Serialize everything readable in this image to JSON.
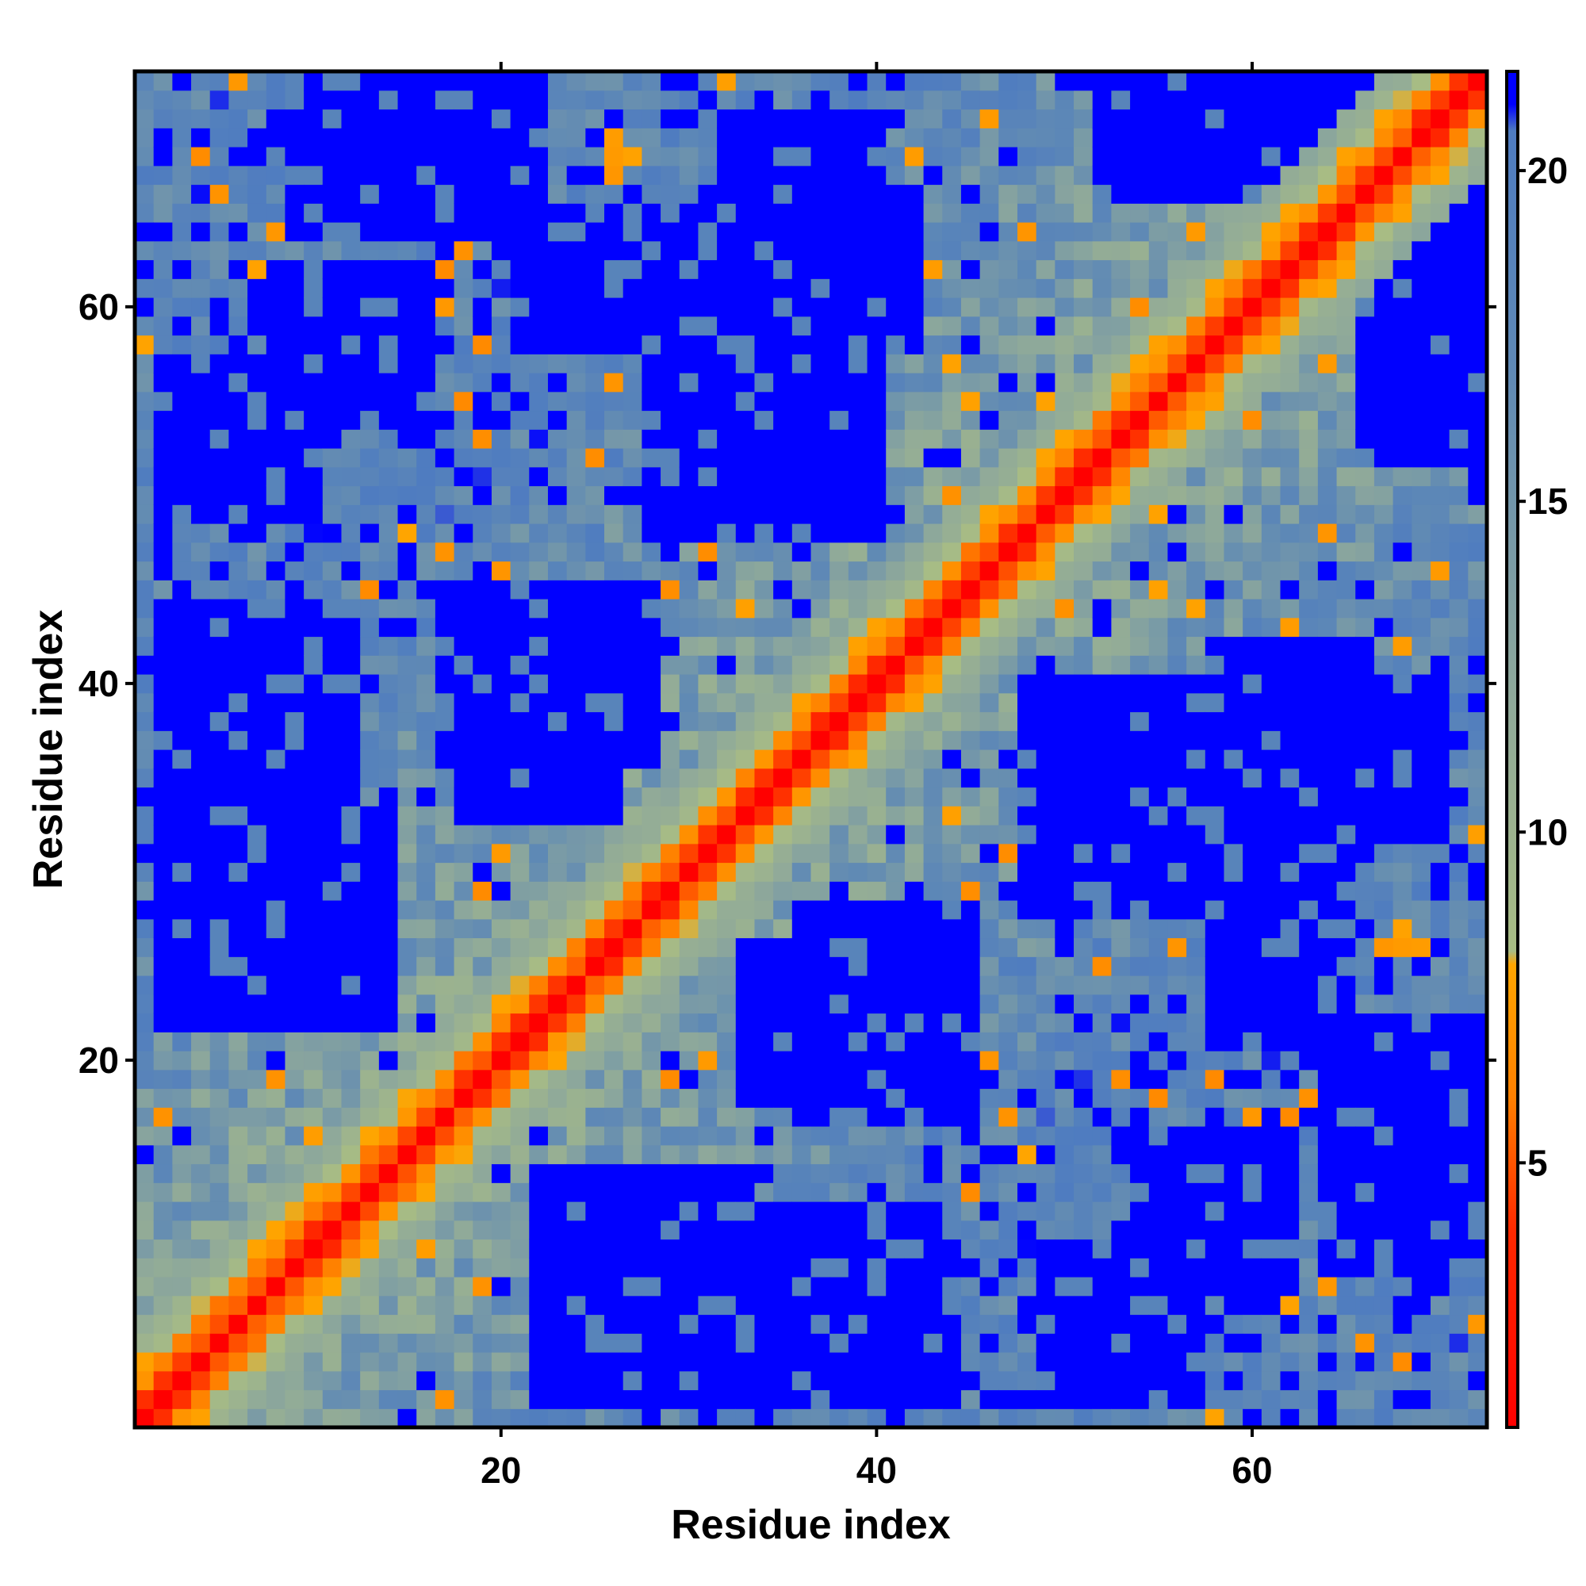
{
  "chart_data": {
    "type": "heatmap",
    "title": "",
    "xlabel": "Residue index",
    "ylabel": "Residue index",
    "n_residues": 72,
    "xlim": [
      0.5,
      72.5
    ],
    "ylim": [
      0.5,
      72.5
    ],
    "x_ticks": [
      20,
      40,
      60
    ],
    "y_ticks": [
      20,
      40,
      60
    ],
    "colorbar": {
      "range": [
        1,
        21.5
      ],
      "ticks": [
        5,
        10,
        15,
        20
      ],
      "stops": [
        {
          "value": 1,
          "color": "#ff0000"
        },
        {
          "value": 4,
          "color": "#ff2a00"
        },
        {
          "value": 6,
          "color": "#ff8000"
        },
        {
          "value": 8,
          "color": "#ffa500"
        },
        {
          "value": 8.2,
          "color": "#a8bc84"
        },
        {
          "value": 12,
          "color": "#8fa99a"
        },
        {
          "value": 17,
          "color": "#5f89b5"
        },
        {
          "value": 20.6,
          "color": "#4f7cc0"
        },
        {
          "value": 21,
          "color": "#0000ff"
        },
        {
          "value": 21.5,
          "color": "#0000ff"
        }
      ]
    },
    "structure": {
      "diagonal_value": 1,
      "near_diagonal_profile": [
        1,
        4.5,
        6.5,
        8.5,
        10.5,
        12
      ],
      "far_cutoff": 21,
      "far_blocks": [
        {
          "i": [
            2,
            14
          ],
          "j": [
            22,
            33
          ]
        },
        {
          "i": [
            8,
            16
          ],
          "j": [
            54,
            62
          ]
        },
        {
          "i": [
            18,
            26
          ],
          "j": [
            33,
            45
          ]
        },
        {
          "i": [
            21,
            30
          ],
          "j": [
            58,
            65
          ]
        },
        {
          "i": [
            30,
            38
          ],
          "j": [
            48,
            58
          ]
        },
        {
          "i": [
            32,
            40
          ],
          "j": [
            62,
            70
          ]
        },
        {
          "i": [
            34,
            44
          ],
          "j": [
            2,
            12
          ]
        },
        {
          "i": [
            36,
            45
          ],
          "j": [
            17,
            28
          ]
        },
        {
          "i": [
            49,
            57
          ],
          "j": [
            2,
            10
          ]
        },
        {
          "i": [
            48,
            57
          ],
          "j": [
            28,
            40
          ]
        },
        {
          "i": [
            58,
            66
          ],
          "j": [
            30,
            42
          ]
        },
        {
          "i": [
            64,
            72
          ],
          "j": [
            9,
            22
          ]
        },
        {
          "i": [
            66,
            72
          ],
          "j": [
            52,
            60
          ]
        },
        {
          "i": [
            60,
            68
          ],
          "j": [
            62,
            72
          ]
        }
      ]
    }
  }
}
